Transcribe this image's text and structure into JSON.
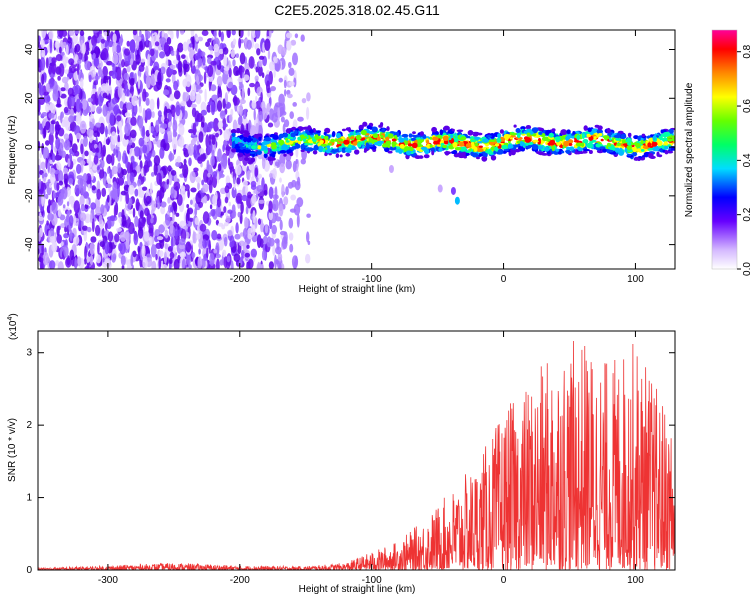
{
  "title": "C2E5.2025.318.02.45.G11",
  "chart_data": [
    {
      "type": "heatmap",
      "xlabel": "Height of straight line (km)",
      "ylabel": "Frequency (Hz)",
      "xlim": [
        -353,
        130
      ],
      "ylim": [
        -50,
        48
      ],
      "xticks": [
        -300,
        -200,
        -100,
        0,
        100
      ],
      "xtick_labels": [
        "-300",
        "-200",
        "-100",
        "0",
        "100"
      ],
      "yticks": [
        -40,
        -20,
        0,
        20,
        40
      ],
      "ytick_labels": [
        "-40",
        "-20",
        "0",
        "20",
        "40"
      ],
      "signal_band": {
        "x_start": -205,
        "x_end": 130,
        "center_freq_hz": 2,
        "half_width_hz": 5
      },
      "noise_region_x": [
        -353,
        -150
      ],
      "colorbar": {
        "label": "Normalized spectral amplitude",
        "range": [
          0.0,
          0.88
        ],
        "ticks": [
          0.0,
          0.2,
          0.4,
          0.6,
          0.8
        ],
        "tick_labels": [
          "0.0",
          "0.2",
          "0.4",
          "0.6",
          "0.8"
        ]
      }
    },
    {
      "type": "line",
      "xlabel": "Height of straight line (km)",
      "ylabel": "SNR (10 * v/v)",
      "y_multiplier_label": "(x10",
      "y_multiplier_exp": "4",
      "y_multiplier_close": ")",
      "xlim": [
        -353,
        130
      ],
      "ylim": [
        0,
        3.3
      ],
      "xticks": [
        -300,
        -200,
        -100,
        0,
        100
      ],
      "xtick_labels": [
        "-300",
        "-200",
        "-100",
        "0",
        "100"
      ],
      "yticks": [
        0,
        1,
        2,
        3
      ],
      "ytick_labels": [
        "0",
        "1",
        "2",
        "3"
      ],
      "series": [
        {
          "color": "#ee3333",
          "envelope_x": [
            -353,
            -300,
            -250,
            -200,
            -150,
            -120,
            -100,
            -80,
            -60,
            -40,
            -20,
            0,
            20,
            40,
            60,
            80,
            100,
            130
          ],
          "envelope_y": [
            0.03,
            0.06,
            0.1,
            0.06,
            0.05,
            0.1,
            0.25,
            0.4,
            0.7,
            1.1,
            1.5,
            2.2,
            2.6,
            3.1,
            3.2,
            2.9,
            3.2,
            2.0
          ]
        }
      ]
    }
  ]
}
